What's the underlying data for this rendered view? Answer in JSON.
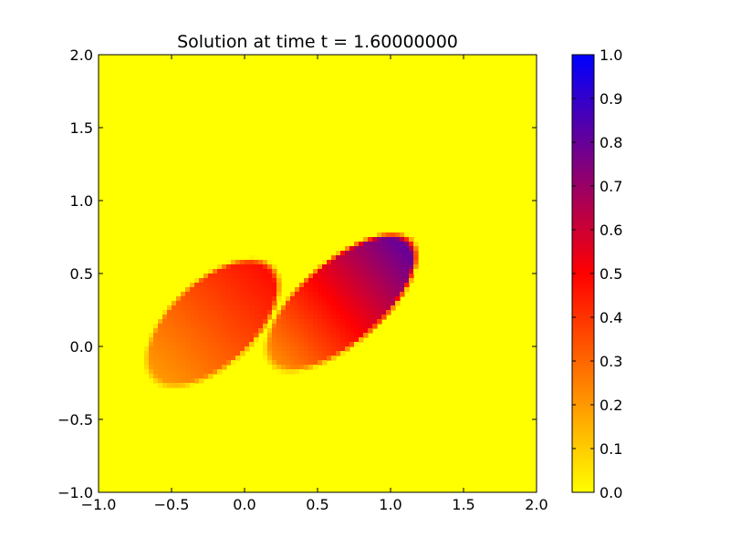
{
  "chart_data": {
    "type": "heatmap",
    "title": "Solution at time t =     1.60000000",
    "xlabel": "",
    "ylabel": "",
    "xlim": [
      -1.0,
      2.0
    ],
    "ylim": [
      -1.0,
      2.0
    ],
    "x_ticks": [
      "−1.0",
      "−0.5",
      "0.0",
      "0.5",
      "1.0",
      "1.5",
      "2.0"
    ],
    "y_ticks": [
      "−1.0",
      "−0.5",
      "0.0",
      "0.5",
      "1.0",
      "1.5",
      "2.0"
    ],
    "colorbar": {
      "range": [
        0.0,
        1.0
      ],
      "ticks": [
        "0.0",
        "0.1",
        "0.2",
        "0.3",
        "0.4",
        "0.5",
        "0.6",
        "0.7",
        "0.8",
        "0.9",
        "1.0"
      ],
      "colors": [
        "#ffff00",
        "#ff0000",
        "#0000ff"
      ]
    },
    "grid_resolution": [
      96,
      96
    ],
    "features": [
      {
        "name": "left lobe",
        "description": "tilted elliptical blob, peak about 0.48 near (0.05, 0.45)",
        "center": [
          -0.2,
          0.17
        ],
        "peak_value": 0.48
      },
      {
        "name": "right lobe",
        "description": "elongated blob oriented up-right, peak about 0.85 near (1.0, 0.7)",
        "center": [
          0.65,
          0.3
        ],
        "peak_value": 0.85
      }
    ],
    "background_value": 0.0,
    "grid": false
  }
}
